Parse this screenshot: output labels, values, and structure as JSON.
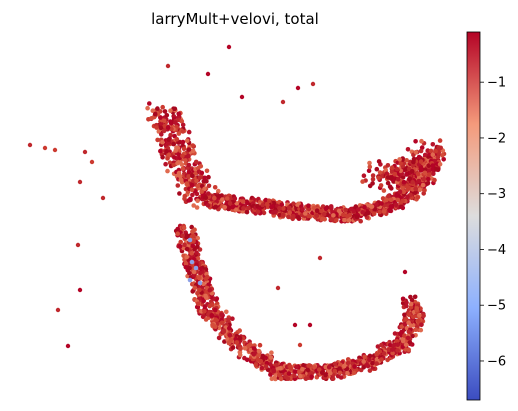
{
  "chart_data": {
    "type": "scatter",
    "title": "larryMult+velovi, total",
    "xlabel": "",
    "ylabel": "",
    "colormap": "coolwarm",
    "color_range": [
      -6.7,
      -0.1
    ],
    "colorbar": {
      "ticks": [
        -1,
        -2,
        -3,
        -4,
        -5,
        -6
      ],
      "tick_labels": [
        "−1",
        "−2",
        "−3",
        "−4",
        "−5",
        "−6"
      ],
      "placement": "right"
    },
    "axes_visible": false,
    "grid": false,
    "point_color_typical": "#c21a2a",
    "structure": {
      "description_free": true,
      "branches": [
        {
          "name": "upper-left-cluster",
          "points": [
            [
              160,
              110
            ],
            [
              172,
              130
            ],
            [
              180,
              155
            ],
            [
              192,
              180
            ],
            [
              205,
              200
            ]
          ]
        },
        {
          "name": "upper-arm",
          "points": [
            [
              205,
              200
            ],
            [
              250,
              205
            ],
            [
              300,
              212
            ],
            [
              350,
              215
            ],
            [
              390,
              205
            ],
            [
              420,
              185
            ],
            [
              435,
              155
            ]
          ]
        },
        {
          "name": "right-blob",
          "points": [
            [
              380,
              170
            ],
            [
              400,
              180
            ],
            [
              415,
              170
            ],
            [
              430,
              150
            ]
          ]
        },
        {
          "name": "lower-arm",
          "points": [
            [
              185,
              230
            ],
            [
              195,
              270
            ],
            [
              210,
              310
            ],
            [
              240,
              345
            ],
            [
              280,
              372
            ],
            [
              330,
              372
            ],
            [
              370,
              362
            ],
            [
              400,
              345
            ],
            [
              415,
              320
            ],
            [
              410,
              300
            ]
          ]
        }
      ],
      "outliers": [
        [
          30,
          145
        ],
        [
          45,
          148
        ],
        [
          55,
          150
        ],
        [
          85,
          152
        ],
        [
          92,
          162
        ],
        [
          80,
          182
        ],
        [
          103,
          198
        ],
        [
          78,
          245
        ],
        [
          80,
          290
        ],
        [
          58,
          310
        ],
        [
          68,
          346
        ],
        [
          168,
          66
        ],
        [
          229,
          47
        ],
        [
          208,
          74
        ],
        [
          242,
          97
        ],
        [
          283,
          102
        ],
        [
          298,
          88
        ],
        [
          313,
          84
        ],
        [
          405,
          272
        ],
        [
          278,
          288
        ],
        [
          295,
          325
        ],
        [
          310,
          325
        ],
        [
          300,
          345
        ],
        [
          320,
          258
        ],
        [
          350,
          215
        ]
      ],
      "blue_points": [
        [
          190,
          240
        ],
        [
          192,
          262
        ],
        [
          190,
          280
        ],
        [
          200,
          283
        ],
        [
          196,
          268
        ]
      ]
    }
  }
}
